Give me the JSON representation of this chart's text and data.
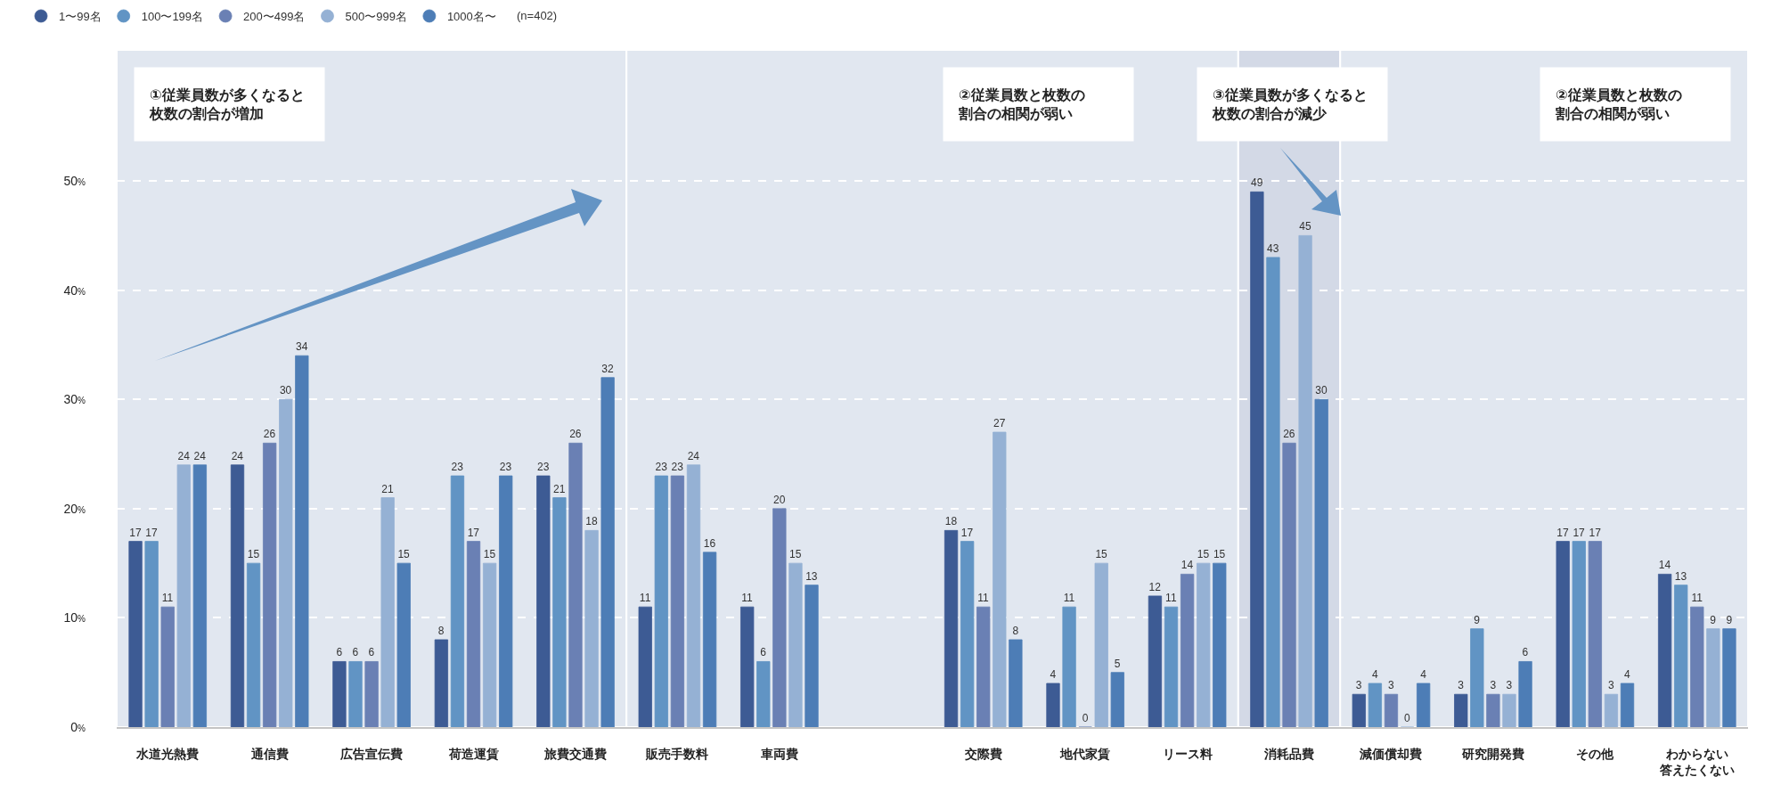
{
  "chart_data": {
    "type": "bar",
    "categories": [
      "水道光熱費",
      "通信費",
      "広告宣伝費",
      "荷造運賃",
      "旅費交通費",
      "販売手数料",
      "車両費",
      null,
      "交際費",
      "地代家賃",
      "リース料",
      "消耗品費",
      "減価償却費",
      "研究開発費",
      "その他",
      "わからない答えたくない"
    ],
    "series": [
      {
        "name": "1〜99名",
        "color": "#3d5b94",
        "values": [
          17,
          24,
          6,
          8,
          23,
          11,
          11,
          null,
          18,
          4,
          12,
          49,
          3,
          3,
          17,
          14
        ]
      },
      {
        "name": "100〜199名",
        "color": "#6194c4",
        "values": [
          17,
          15,
          6,
          23,
          21,
          23,
          6,
          null,
          17,
          11,
          11,
          43,
          4,
          9,
          17,
          13
        ]
      },
      {
        "name": "200〜499名",
        "color": "#6a80b4",
        "values": [
          11,
          26,
          6,
          17,
          26,
          23,
          20,
          null,
          11,
          0,
          14,
          26,
          3,
          3,
          17,
          11
        ]
      },
      {
        "name": "500〜999名",
        "color": "#95b1d4",
        "values": [
          24,
          30,
          21,
          15,
          18,
          24,
          15,
          null,
          27,
          15,
          15,
          45,
          0,
          3,
          3,
          9
        ]
      },
      {
        "name": "1000名〜",
        "color": "#4d7db6",
        "values": [
          24,
          34,
          15,
          23,
          32,
          16,
          13,
          null,
          8,
          5,
          15,
          30,
          4,
          6,
          4,
          9
        ]
      }
    ],
    "ylim": [
      0,
      62
    ],
    "yticks": [
      {
        "value": 0,
        "label": "0%"
      },
      {
        "value": 10,
        "label": "10%"
      },
      {
        "value": 20,
        "label": "20%"
      },
      {
        "value": 30,
        "label": "30%"
      },
      {
        "value": 40,
        "label": "40%"
      },
      {
        "value": 50,
        "label": "50%"
      }
    ],
    "grid": "y",
    "legend": "top left",
    "data_labels": true,
    "bands": [
      {
        "axis": "x",
        "from": "水道光熱費",
        "to": "旅費交通費",
        "color": "#e1e7f0"
      },
      {
        "axis": "x",
        "from": "販売手数料",
        "to": "リース料",
        "color": "#e1e7f0"
      },
      {
        "axis": "x",
        "from": "消耗品費",
        "to": "消耗品費",
        "color": "#d3d9e6"
      },
      {
        "axis": "x",
        "from": "減価償却費",
        "to": "わからない答えたくない",
        "color": "#e1e7f0"
      }
    ],
    "annotations": [
      "①従業員数が多くなると枚数の割合が増加",
      "②従業員数と枚数の割合の相関が弱い",
      "③従業員数が多くなると枚数の割合が減少",
      "②従業員数と枚数の割合の相関が弱い",
      "(n=402)"
    ]
  }
}
